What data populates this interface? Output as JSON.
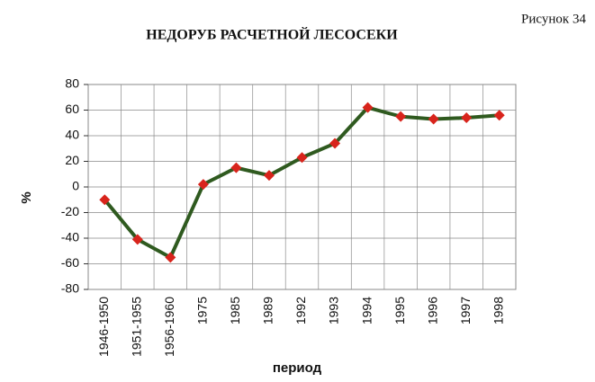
{
  "chart_data": {
    "type": "line",
    "title": "НЕДОРУБ РАСЧЕТНОЙ ЛЕСОСЕКИ",
    "figure_label": "Рисунок 34",
    "y_label": "%",
    "x_label": "период",
    "categories": [
      "1946-1950",
      "1951-1955",
      "1956-1960",
      "1975",
      "1985",
      "1989",
      "1992",
      "1993",
      "1994",
      "1995",
      "1996",
      "1997",
      "1998"
    ],
    "series": [
      {
        "name": "недоруб",
        "color": "#2f5a1f",
        "marker_color": "#d8241c",
        "values": [
          -10,
          -41,
          -55,
          2,
          15,
          9,
          23,
          34,
          62,
          55,
          53,
          54,
          56
        ]
      }
    ],
    "ylim": [
      -80,
      80
    ],
    "yticks": [
      -80,
      -60,
      -40,
      -20,
      0,
      20,
      40,
      60,
      80
    ],
    "grid": true
  }
}
